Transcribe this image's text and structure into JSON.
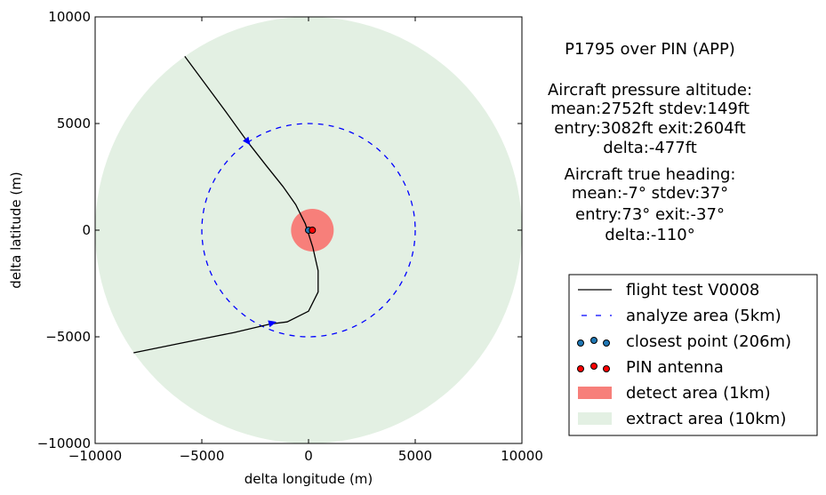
{
  "chart_data": {
    "type": "scatter",
    "xlabel": "delta longitude (m)",
    "ylabel": "delta latitude (m)",
    "xlim": [
      -10000,
      10000
    ],
    "ylim": [
      -10000,
      10000
    ],
    "xticks": [
      -10000,
      -5000,
      0,
      5000,
      10000
    ],
    "yticks": [
      -10000,
      -5000,
      0,
      5000,
      10000
    ],
    "xtick_labels": [
      "−10000",
      "−5000",
      "0",
      "5000",
      "10000"
    ],
    "ytick_labels": [
      "−10000",
      "−5000",
      "0",
      "5000",
      "10000"
    ],
    "grid": false,
    "legend_position": "right",
    "colors": {
      "flight": "#000000",
      "analyze": "#0000ff",
      "closest": "#1f77b4",
      "antenna": "#ff0000",
      "detect": "#f77f7a",
      "extract": "#e3f0e3"
    },
    "info_lines": [
      "P1795 over PIN (APP)",
      "Aircraft pressure altitude:",
      "mean:2752ft stdev:149ft",
      "entry:3082ft exit:2604ft",
      "delta:-477ft",
      "Aircraft true heading:",
      "mean:-7° stdev:37°",
      "entry:73° exit:-37°",
      "delta:-110°"
    ],
    "legend": [
      {
        "label": "flight test V0008",
        "kind": "line"
      },
      {
        "label": "analyze area (5km)",
        "kind": "dash"
      },
      {
        "label": "closest point (206m)",
        "kind": "dots-blue"
      },
      {
        "label": "PIN antenna",
        "kind": "dots-red"
      },
      {
        "label": "detect area (1km)",
        "kind": "patch-red"
      },
      {
        "label": "extract area (10km)",
        "kind": "patch-green"
      }
    ],
    "series": [
      {
        "name": "flight test V0008",
        "points": [
          [
            -5800,
            8150
          ],
          [
            -4800,
            6800
          ],
          [
            -3800,
            5450
          ],
          [
            -2900,
            4200
          ],
          [
            -2000,
            3050
          ],
          [
            -1200,
            2050
          ],
          [
            -600,
            1200
          ],
          [
            -150,
            300
          ],
          [
            200,
            -800
          ],
          [
            450,
            -1900
          ],
          [
            450,
            -2900
          ],
          [
            0,
            -3800
          ],
          [
            -1000,
            -4300
          ],
          [
            -1800,
            -4400
          ],
          [
            -3500,
            -4800
          ],
          [
            -6000,
            -5300
          ],
          [
            -8200,
            -5750
          ]
        ]
      },
      {
        "name": "analyze area (5km)",
        "center": [
          0,
          0
        ],
        "radius": 5000
      },
      {
        "name": "closest point (206m)",
        "points": [
          [
            0,
            0
          ]
        ]
      },
      {
        "name": "PIN antenna",
        "points": [
          [
            180,
            0
          ]
        ]
      },
      {
        "name": "detect area (1km)",
        "center": [
          180,
          0
        ],
        "radius": 1000
      },
      {
        "name": "extract area (10km)",
        "center": [
          0,
          0
        ],
        "radius": 10000
      }
    ],
    "arrows": [
      {
        "at": [
          -2850,
          4150
        ],
        "dir": [
          0.6,
          -0.8
        ]
      },
      {
        "at": [
          -1700,
          -4350
        ],
        "dir": [
          0.95,
          0.25
        ]
      }
    ]
  }
}
